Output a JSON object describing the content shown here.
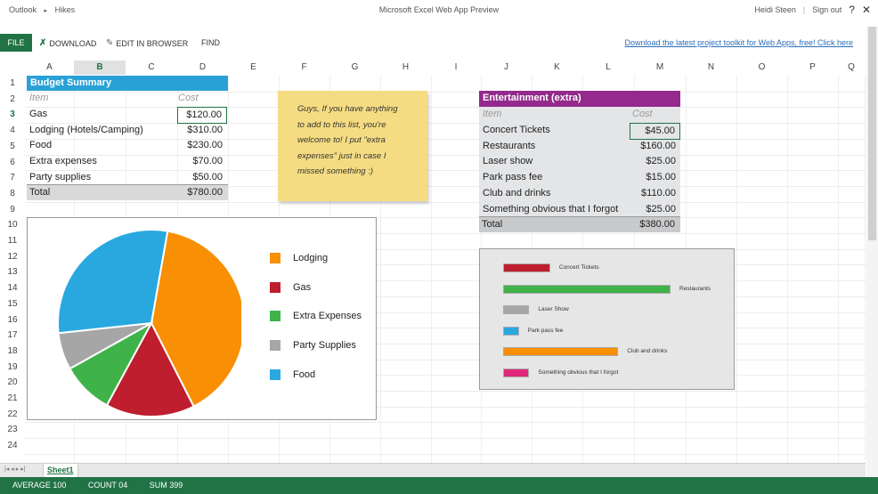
{
  "titlebar": {
    "crumb_app": "Outlook",
    "crumb_sep": "▸",
    "crumb_folder": "Hikes",
    "title": "Microsoft Excel Web App Preview",
    "user": "Heidi Steen",
    "separator": "|",
    "signout": "Sign out",
    "help": "?",
    "close": "✕"
  },
  "ribbon": {
    "file": "FILE",
    "download": "DOWNLOAD",
    "edit": "EDIT IN BROWSER",
    "find": "FIND",
    "link": "Download the latest project toolkit for Web Apps, free! Click here"
  },
  "columns": [
    "A",
    "B",
    "C",
    "D",
    "E",
    "F",
    "G",
    "H",
    "I",
    "J",
    "K",
    "L",
    "M",
    "N",
    "O",
    "P",
    "Q"
  ],
  "rows": [
    "1",
    "2",
    "3",
    "4",
    "5",
    "6",
    "7",
    "8",
    "9",
    "10",
    "11",
    "12",
    "13",
    "14",
    "15",
    "16",
    "17",
    "18",
    "19",
    "20",
    "21",
    "22",
    "23",
    "24"
  ],
  "budget": {
    "title": "Budget Summary",
    "item_header": "Item",
    "cost_header": "Cost",
    "items": [
      {
        "name": "Gas",
        "cost": "$120.00"
      },
      {
        "name": "Lodging (Hotels/Camping)",
        "cost": "$310.00"
      },
      {
        "name": "Food",
        "cost": "$230.00"
      },
      {
        "name": "Extra expenses",
        "cost": "$70.00"
      },
      {
        "name": "Party supplies",
        "cost": "$50.00"
      }
    ],
    "total_label": "Total",
    "total_value": "$780.00"
  },
  "note": {
    "lines": [
      "Guys, If you have anything",
      "to add to this list, you're",
      "welcome to! I put \"extra",
      "expenses\" just in case I",
      "missed something :)"
    ]
  },
  "entertainment": {
    "title": "Entertainment (extra)",
    "item_header": "Item",
    "cost_header": "Cost",
    "items": [
      {
        "name": "Concert Tickets",
        "cost": "$45.00"
      },
      {
        "name": "Restaurants",
        "cost": "$160.00"
      },
      {
        "name": "Laser show",
        "cost": "$25.00"
      },
      {
        "name": "Park pass fee",
        "cost": "$15.00"
      },
      {
        "name": "Club and drinks",
        "cost": "$110.00"
      },
      {
        "name": "Something obvious that I forgot",
        "cost": "$25.00"
      }
    ],
    "total_label": "Total",
    "total_value": "$380.00"
  },
  "chart_data": [
    {
      "type": "pie",
      "categories": [
        "Lodging",
        "Gas",
        "Extra Expenses",
        "Party Supplies",
        "Food"
      ],
      "values": [
        310,
        120,
        70,
        50,
        230
      ],
      "colors": [
        "#f88f04",
        "#be1e2d",
        "#3fb34a",
        "#a6a6a6",
        "#29a8e0"
      ],
      "legend": "right"
    },
    {
      "type": "bar",
      "orientation": "horizontal",
      "categories": [
        "Concert Tickets",
        "Restaurants",
        "Laser Show",
        "Park pass fee",
        "Club and drinks",
        "Something obvious that I forgot"
      ],
      "values": [
        45,
        160,
        25,
        15,
        110,
        25
      ],
      "colors": [
        "#be1e2d",
        "#3fb34a",
        "#a6a6a6",
        "#29a8e0",
        "#f88f04",
        "#e0287a"
      ]
    }
  ],
  "sheetbar": {
    "nav": "|◂ ◂ ▸ ▸|",
    "tab": "Sheet1"
  },
  "status": {
    "average": "AVERAGE 100",
    "count": "COUNT 04",
    "sum": "SUM 399"
  },
  "colors": {
    "accent": "#217346",
    "budget_header": "#2aa1d6",
    "entertainment_header": "#932a8c",
    "note": "#f5dc82"
  }
}
